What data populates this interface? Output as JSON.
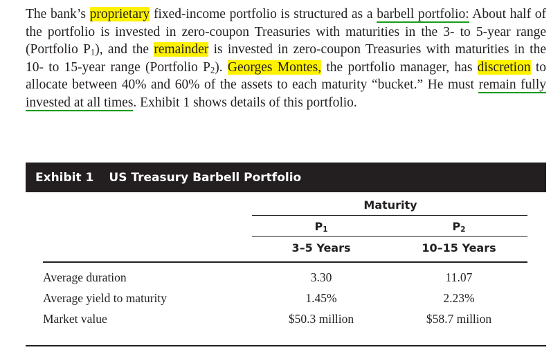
{
  "paragraph": {
    "t1": "The bank’s ",
    "h1": "proprietary",
    "t2": " fixed-income portfolio is structured as a ",
    "u1": "barbell portfolio:",
    "t3": " About half of the portfolio is invested in zero-coupon Treasuries with maturities in the 3- to 5-year range (Portfolio P",
    "sub1": "1",
    "t4": "), and the ",
    "h2": "remainder",
    "t5": " is invested in zero-coupon Treasuries with maturities in the 10- to 15-year range (Portfolio P",
    "sub2": "2",
    "t6": "). ",
    "h3": "Georges Montes,",
    "t7": " the portfolio manager, has ",
    "h4": "discretion",
    "t8": " to allocate between 40% and 60% of the assets to each maturity “bucket.” He must ",
    "u2": "remain fully invested at all times",
    "t9": ". Exhibit 1 shows details of this portfolio."
  },
  "exhibit": {
    "number": "Exhibit 1",
    "title": "US Treasury Barbell Portfolio",
    "maturity_header": "Maturity",
    "col1": {
      "name": "P",
      "sub": "1",
      "range": "3–5 Years"
    },
    "col2": {
      "name": "P",
      "sub": "2",
      "range": "10–15 Years"
    },
    "rows": [
      {
        "label": "Average duration",
        "v1": "3.30",
        "v2": "11.07"
      },
      {
        "label": "Average yield to maturity",
        "v1": "1.45%",
        "v2": "2.23%"
      },
      {
        "label": "Market value",
        "v1": "$50.3 million",
        "v2": "$58.7 million"
      }
    ]
  }
}
